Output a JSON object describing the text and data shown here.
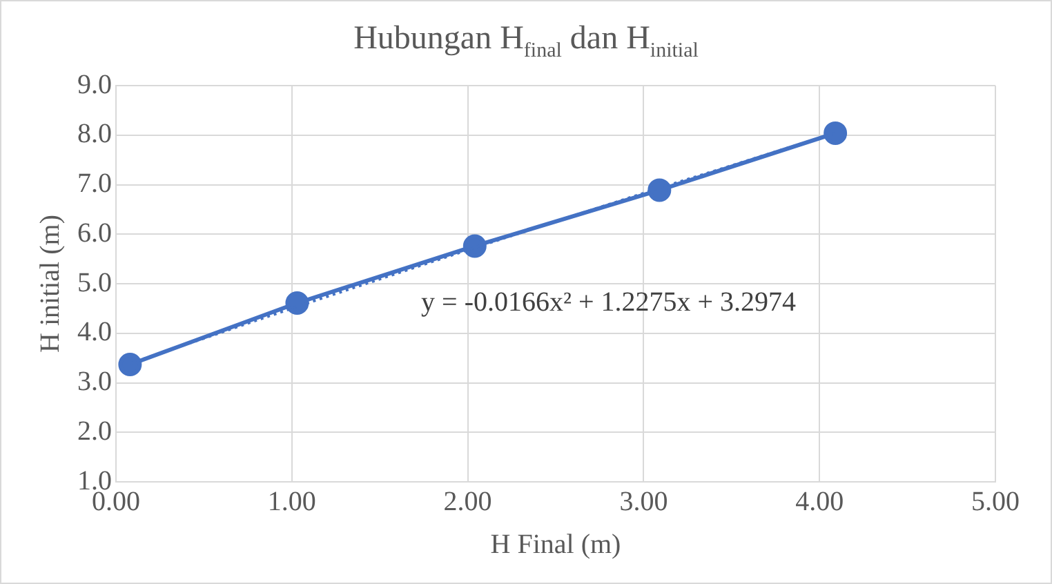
{
  "chart_data": {
    "type": "line",
    "title": "Hubungan H$_{final}$ dan H$_{initial}$",
    "xlabel": "H Final (m)",
    "ylabel": "H initial (m)",
    "series": [
      {
        "color": "#4472c4",
        "x": [
          0.08,
          1.03,
          2.04,
          3.09,
          4.09
        ],
        "values": [
          3.37,
          4.61,
          5.76,
          6.89,
          8.04
        ],
        "marker": "circle",
        "line_style": "solid"
      },
      {
        "color": "#4472c4",
        "x": [
          0.08,
          1.03,
          2.04,
          3.09,
          4.09
        ],
        "values": [
          3.39,
          4.54,
          5.73,
          6.93,
          8.04
        ],
        "marker": "none",
        "line_style": "dotted"
      }
    ],
    "xlim": [
      0,
      5
    ],
    "xticks": [
      {
        "value": 0,
        "label": "0.00"
      },
      {
        "value": 1,
        "label": "1.00"
      },
      {
        "value": 2,
        "label": "2.00"
      },
      {
        "value": 3,
        "label": "3.00"
      },
      {
        "value": 4,
        "label": "4.00"
      },
      {
        "value": 5,
        "label": "5.00"
      }
    ],
    "ylim": [
      1,
      9
    ],
    "yticks": [
      {
        "value": 1,
        "label": "1.0"
      },
      {
        "value": 2,
        "label": "2.0"
      },
      {
        "value": 3,
        "label": "3.0"
      },
      {
        "value": 4,
        "label": "4.0"
      },
      {
        "value": 5,
        "label": "5.0"
      },
      {
        "value": 6,
        "label": "6.0"
      },
      {
        "value": 7,
        "label": "7.0"
      },
      {
        "value": 8,
        "label": "8.0"
      },
      {
        "value": 9,
        "label": "9.0"
      }
    ],
    "annotations": [
      "y = -0.0166x² + 1.2275x + 3.2974"
    ],
    "grid": true,
    "legend": false
  }
}
